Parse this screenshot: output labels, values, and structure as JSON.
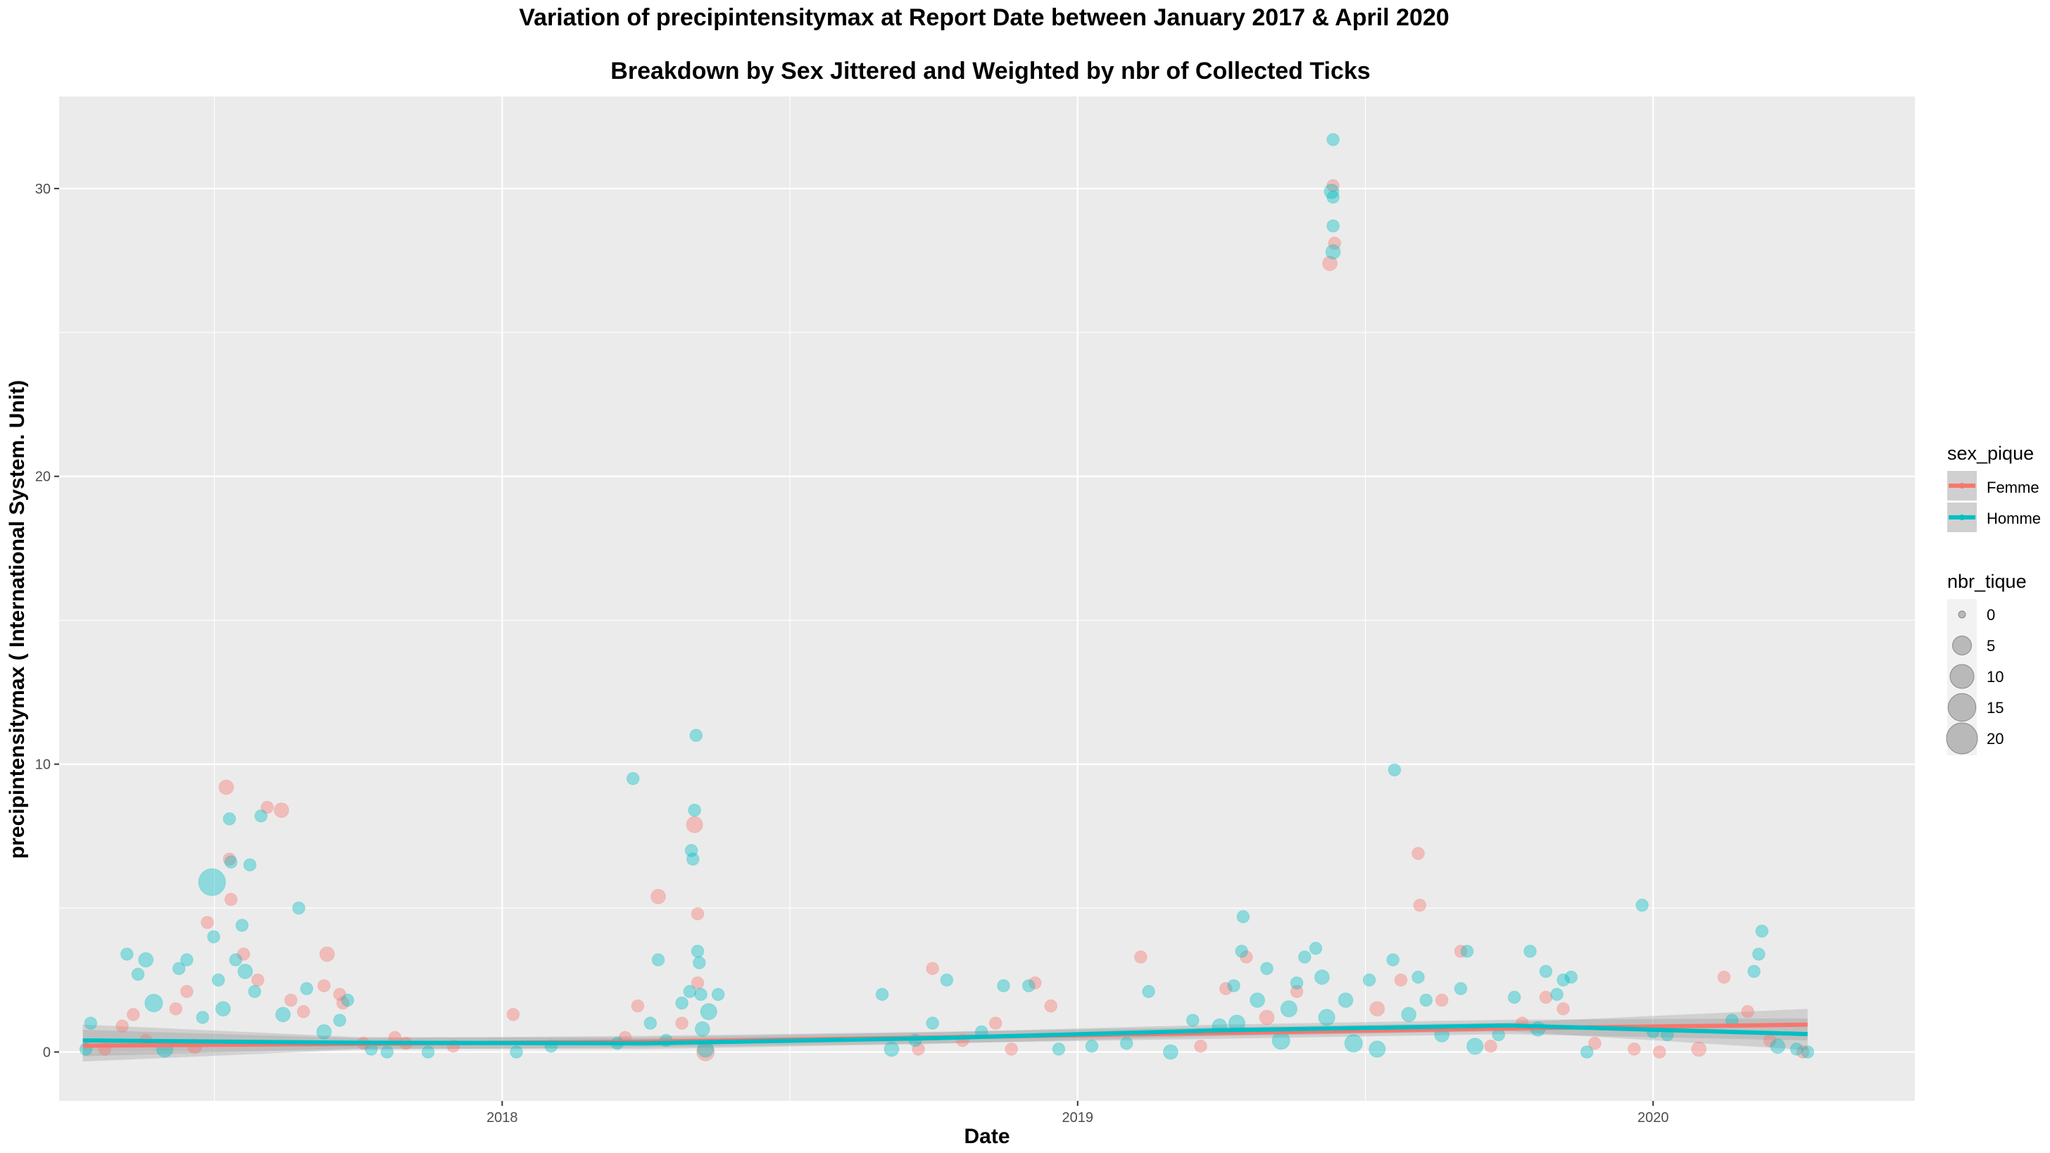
{
  "chart_data": {
    "type": "scatter",
    "title": "Variation of  precipintensitymax  at Report Date between January 2017 & April 2020",
    "subtitle": "Breakdown by Sex Jittered and Weighted by nbr of Collected Ticks",
    "xlabel": "Date",
    "ylabel": "precipintensitymax ( International System. Unit)",
    "x_type": "date",
    "xlim": [
      "2017-03-26",
      "2020-06-15"
    ],
    "ylim": [
      -1.7,
      33.2
    ],
    "x_ticks": [
      {
        "date": "2018-01-01",
        "label": "2018"
      },
      {
        "date": "2019-01-01",
        "label": "2019"
      },
      {
        "date": "2020-01-01",
        "label": "2020"
      }
    ],
    "y_ticks": [
      0,
      10,
      20,
      30
    ],
    "grid": true,
    "panel_background": "#ebebeb",
    "grid_color": "#ffffff",
    "legend_position": "right",
    "color_legend": {
      "title": "sex_pique",
      "entries": [
        {
          "name": "Femme",
          "color": "#f8766d"
        },
        {
          "name": "Homme",
          "color": "#00bfc4"
        }
      ]
    },
    "size_legend": {
      "title": "nbr_tique",
      "entries": [
        0,
        5,
        10,
        15,
        20
      ]
    },
    "trend_lines": [
      {
        "name": "Femme",
        "color": "#f8766d",
        "points": [
          [
            "2017-04-10",
            0.22
          ],
          [
            "2017-10-01",
            0.28
          ],
          [
            "2018-04-01",
            0.36
          ],
          [
            "2018-10-01",
            0.5
          ],
          [
            "2019-04-01",
            0.66
          ],
          [
            "2019-10-01",
            0.82
          ],
          [
            "2020-04-08",
            0.95
          ]
        ]
      },
      {
        "name": "Homme",
        "color": "#00bfc4",
        "points": [
          [
            "2017-04-10",
            0.4
          ],
          [
            "2017-10-01",
            0.32
          ],
          [
            "2018-04-01",
            0.3
          ],
          [
            "2018-10-01",
            0.48
          ],
          [
            "2019-04-01",
            0.75
          ],
          [
            "2019-10-01",
            0.92
          ],
          [
            "2020-04-08",
            0.62
          ]
        ]
      }
    ],
    "series": [
      {
        "name": "Femme",
        "color": "#f8766d",
        "points": [
          [
            "2017-04-24",
            0.1,
            1
          ],
          [
            "2017-05-05",
            0.9,
            1
          ],
          [
            "2017-05-12",
            1.3,
            1
          ],
          [
            "2017-05-20",
            0.4,
            1
          ],
          [
            "2017-06-08",
            1.5,
            1
          ],
          [
            "2017-06-15",
            2.1,
            1
          ],
          [
            "2017-06-20",
            0.2,
            2
          ],
          [
            "2017-06-28",
            4.5,
            1
          ],
          [
            "2017-07-10",
            9.2,
            2
          ],
          [
            "2017-07-12",
            6.7,
            1
          ],
          [
            "2017-07-13",
            5.3,
            1
          ],
          [
            "2017-07-21",
            3.4,
            1
          ],
          [
            "2017-07-30",
            2.5,
            1
          ],
          [
            "2017-08-05",
            8.5,
            1
          ],
          [
            "2017-08-14",
            8.4,
            2
          ],
          [
            "2017-08-20",
            1.8,
            1
          ],
          [
            "2017-08-28",
            1.4,
            1
          ],
          [
            "2017-09-10",
            2.3,
            1
          ],
          [
            "2017-09-12",
            3.4,
            2
          ],
          [
            "2017-09-20",
            2.0,
            1
          ],
          [
            "2017-09-22",
            1.7,
            1
          ],
          [
            "2017-10-05",
            0.3,
            1
          ],
          [
            "2017-10-25",
            0.5,
            1
          ],
          [
            "2017-11-01",
            0.3,
            1
          ],
          [
            "2017-12-01",
            0.2,
            1
          ],
          [
            "2018-01-08",
            1.3,
            1
          ],
          [
            "2018-03-20",
            0.5,
            1
          ],
          [
            "2018-03-28",
            1.6,
            1
          ],
          [
            "2018-04-10",
            5.4,
            2
          ],
          [
            "2018-04-25",
            1.0,
            1
          ],
          [
            "2018-05-03",
            7.9,
            3
          ],
          [
            "2018-05-05",
            2.4,
            1
          ],
          [
            "2018-05-10",
            0.0,
            4
          ],
          [
            "2018-05-05",
            4.8,
            1
          ],
          [
            "2018-09-22",
            0.1,
            1
          ],
          [
            "2018-10-01",
            2.9,
            1
          ],
          [
            "2018-10-20",
            0.4,
            1
          ],
          [
            "2018-11-10",
            1.0,
            1
          ],
          [
            "2018-11-20",
            0.1,
            1
          ],
          [
            "2018-12-05",
            2.4,
            1
          ],
          [
            "2018-12-15",
            1.6,
            1
          ],
          [
            "2019-02-10",
            3.3,
            1
          ],
          [
            "2019-03-20",
            0.2,
            1
          ],
          [
            "2019-04-05",
            2.2,
            1
          ],
          [
            "2019-04-18",
            3.3,
            1
          ],
          [
            "2019-05-01",
            1.2,
            2
          ],
          [
            "2019-05-20",
            2.1,
            1
          ],
          [
            "2019-06-10",
            27.4,
            2
          ],
          [
            "2019-06-12",
            30.1,
            1
          ],
          [
            "2019-06-13",
            28.1,
            1
          ],
          [
            "2019-07-10",
            1.5,
            2
          ],
          [
            "2019-07-25",
            2.5,
            1
          ],
          [
            "2019-08-05",
            6.9,
            1
          ],
          [
            "2019-08-06",
            5.1,
            1
          ],
          [
            "2019-08-20",
            1.8,
            1
          ],
          [
            "2019-09-01",
            3.5,
            1
          ],
          [
            "2019-09-20",
            0.2,
            1
          ],
          [
            "2019-10-10",
            1.0,
            1
          ],
          [
            "2019-10-25",
            1.9,
            1
          ],
          [
            "2019-11-05",
            1.5,
            1
          ],
          [
            "2019-11-25",
            0.3,
            1
          ],
          [
            "2019-12-20",
            0.1,
            1
          ],
          [
            "2020-01-05",
            0.0,
            1
          ],
          [
            "2020-01-30",
            0.1,
            2
          ],
          [
            "2020-02-15",
            2.6,
            1
          ],
          [
            "2020-03-01",
            1.4,
            1
          ],
          [
            "2020-03-15",
            0.4,
            1
          ],
          [
            "2020-04-05",
            0.0,
            1
          ]
        ]
      },
      {
        "name": "Homme",
        "color": "#00bfc4",
        "points": [
          [
            "2017-04-12",
            0.1,
            1
          ],
          [
            "2017-04-15",
            1.0,
            1
          ],
          [
            "2017-05-08",
            3.4,
            1
          ],
          [
            "2017-05-15",
            2.7,
            1
          ],
          [
            "2017-05-20",
            3.2,
            2
          ],
          [
            "2017-05-25",
            1.7,
            4
          ],
          [
            "2017-06-01",
            0.1,
            3
          ],
          [
            "2017-06-10",
            2.9,
            1
          ],
          [
            "2017-06-15",
            3.2,
            1
          ],
          [
            "2017-06-25",
            1.2,
            1
          ],
          [
            "2017-07-01",
            5.9,
            14
          ],
          [
            "2017-07-02",
            4.0,
            1
          ],
          [
            "2017-07-05",
            2.5,
            1
          ],
          [
            "2017-07-08",
            1.5,
            2
          ],
          [
            "2017-07-12",
            8.1,
            1
          ],
          [
            "2017-07-13",
            6.6,
            1
          ],
          [
            "2017-07-16",
            3.2,
            1
          ],
          [
            "2017-07-20",
            4.4,
            1
          ],
          [
            "2017-07-22",
            2.8,
            2
          ],
          [
            "2017-07-25",
            6.5,
            1
          ],
          [
            "2017-07-28",
            2.1,
            1
          ],
          [
            "2017-08-01",
            8.2,
            1
          ],
          [
            "2017-08-15",
            1.3,
            2
          ],
          [
            "2017-08-25",
            5.0,
            1
          ],
          [
            "2017-08-30",
            2.2,
            1
          ],
          [
            "2017-09-10",
            0.7,
            2
          ],
          [
            "2017-09-20",
            1.1,
            1
          ],
          [
            "2017-09-25",
            1.8,
            1
          ],
          [
            "2017-10-10",
            0.1,
            1
          ],
          [
            "2017-10-20",
            0.0,
            1
          ],
          [
            "2017-11-15",
            0.0,
            1
          ],
          [
            "2018-01-10",
            0.0,
            1
          ],
          [
            "2018-02-01",
            0.2,
            1
          ],
          [
            "2018-03-15",
            0.3,
            1
          ],
          [
            "2018-03-25",
            9.5,
            1
          ],
          [
            "2018-04-05",
            1.0,
            1
          ],
          [
            "2018-04-10",
            3.2,
            1
          ],
          [
            "2018-04-15",
            0.4,
            1
          ],
          [
            "2018-04-25",
            1.7,
            1
          ],
          [
            "2018-04-30",
            2.1,
            1
          ],
          [
            "2018-05-01",
            7.0,
            1
          ],
          [
            "2018-05-02",
            6.7,
            1
          ],
          [
            "2018-05-03",
            8.4,
            1
          ],
          [
            "2018-05-04",
            11.0,
            1
          ],
          [
            "2018-05-05",
            3.5,
            1
          ],
          [
            "2018-05-06",
            3.1,
            1
          ],
          [
            "2018-05-07",
            2.0,
            1
          ],
          [
            "2018-05-08",
            0.8,
            2
          ],
          [
            "2018-05-12",
            1.4,
            3
          ],
          [
            "2018-05-18",
            2.0,
            1
          ],
          [
            "2018-05-10",
            0.1,
            3
          ],
          [
            "2018-08-30",
            2.0,
            1
          ],
          [
            "2018-09-05",
            0.1,
            2
          ],
          [
            "2018-09-20",
            0.4,
            1
          ],
          [
            "2018-10-01",
            1.0,
            1
          ],
          [
            "2018-10-10",
            2.5,
            1
          ],
          [
            "2018-11-01",
            0.7,
            1
          ],
          [
            "2018-11-15",
            2.3,
            1
          ],
          [
            "2018-12-01",
            2.3,
            1
          ],
          [
            "2018-12-20",
            0.1,
            1
          ],
          [
            "2019-01-10",
            0.2,
            1
          ],
          [
            "2019-02-01",
            0.3,
            1
          ],
          [
            "2019-02-15",
            2.1,
            1
          ],
          [
            "2019-03-01",
            0.0,
            2
          ],
          [
            "2019-03-15",
            1.1,
            1
          ],
          [
            "2019-04-01",
            0.9,
            2
          ],
          [
            "2019-04-10",
            2.3,
            1
          ],
          [
            "2019-04-12",
            1.0,
            3
          ],
          [
            "2019-04-15",
            3.5,
            1
          ],
          [
            "2019-04-16",
            4.7,
            1
          ],
          [
            "2019-04-25",
            1.8,
            2
          ],
          [
            "2019-05-01",
            2.9,
            1
          ],
          [
            "2019-05-10",
            0.4,
            4
          ],
          [
            "2019-05-15",
            1.5,
            3
          ],
          [
            "2019-05-20",
            2.4,
            1
          ],
          [
            "2019-05-25",
            3.3,
            1
          ],
          [
            "2019-06-01",
            3.6,
            1
          ],
          [
            "2019-06-05",
            2.6,
            2
          ],
          [
            "2019-06-08",
            1.2,
            3
          ],
          [
            "2019-06-11",
            29.9,
            2
          ],
          [
            "2019-06-12",
            31.7,
            1
          ],
          [
            "2019-06-12",
            28.7,
            1
          ],
          [
            "2019-06-12",
            27.8,
            2
          ],
          [
            "2019-06-12",
            29.7,
            1
          ],
          [
            "2019-06-20",
            1.8,
            2
          ],
          [
            "2019-06-25",
            0.3,
            4
          ],
          [
            "2019-07-05",
            2.5,
            1
          ],
          [
            "2019-07-10",
            0.1,
            3
          ],
          [
            "2019-07-20",
            3.2,
            1
          ],
          [
            "2019-07-21",
            9.8,
            1
          ],
          [
            "2019-07-30",
            1.3,
            2
          ],
          [
            "2019-08-05",
            2.6,
            1
          ],
          [
            "2019-08-10",
            1.8,
            1
          ],
          [
            "2019-08-20",
            0.6,
            2
          ],
          [
            "2019-09-01",
            2.2,
            1
          ],
          [
            "2019-09-05",
            3.5,
            1
          ],
          [
            "2019-09-10",
            0.2,
            3
          ],
          [
            "2019-09-25",
            0.6,
            1
          ],
          [
            "2019-10-05",
            1.9,
            1
          ],
          [
            "2019-10-15",
            3.5,
            1
          ],
          [
            "2019-10-20",
            0.8,
            2
          ],
          [
            "2019-10-25",
            2.8,
            1
          ],
          [
            "2019-11-01",
            2.0,
            1
          ],
          [
            "2019-11-05",
            2.5,
            1
          ],
          [
            "2019-11-10",
            2.6,
            1
          ],
          [
            "2019-11-20",
            0.0,
            1
          ],
          [
            "2019-12-25",
            5.1,
            1
          ],
          [
            "2020-01-01",
            0.7,
            1
          ],
          [
            "2020-01-10",
            0.6,
            1
          ],
          [
            "2020-02-20",
            1.1,
            1
          ],
          [
            "2020-03-05",
            2.8,
            1
          ],
          [
            "2020-03-08",
            3.4,
            1
          ],
          [
            "2020-03-10",
            4.2,
            1
          ],
          [
            "2020-03-20",
            0.2,
            2
          ],
          [
            "2020-04-01",
            0.1,
            1
          ],
          [
            "2020-04-08",
            0.0,
            1
          ]
        ]
      }
    ]
  }
}
